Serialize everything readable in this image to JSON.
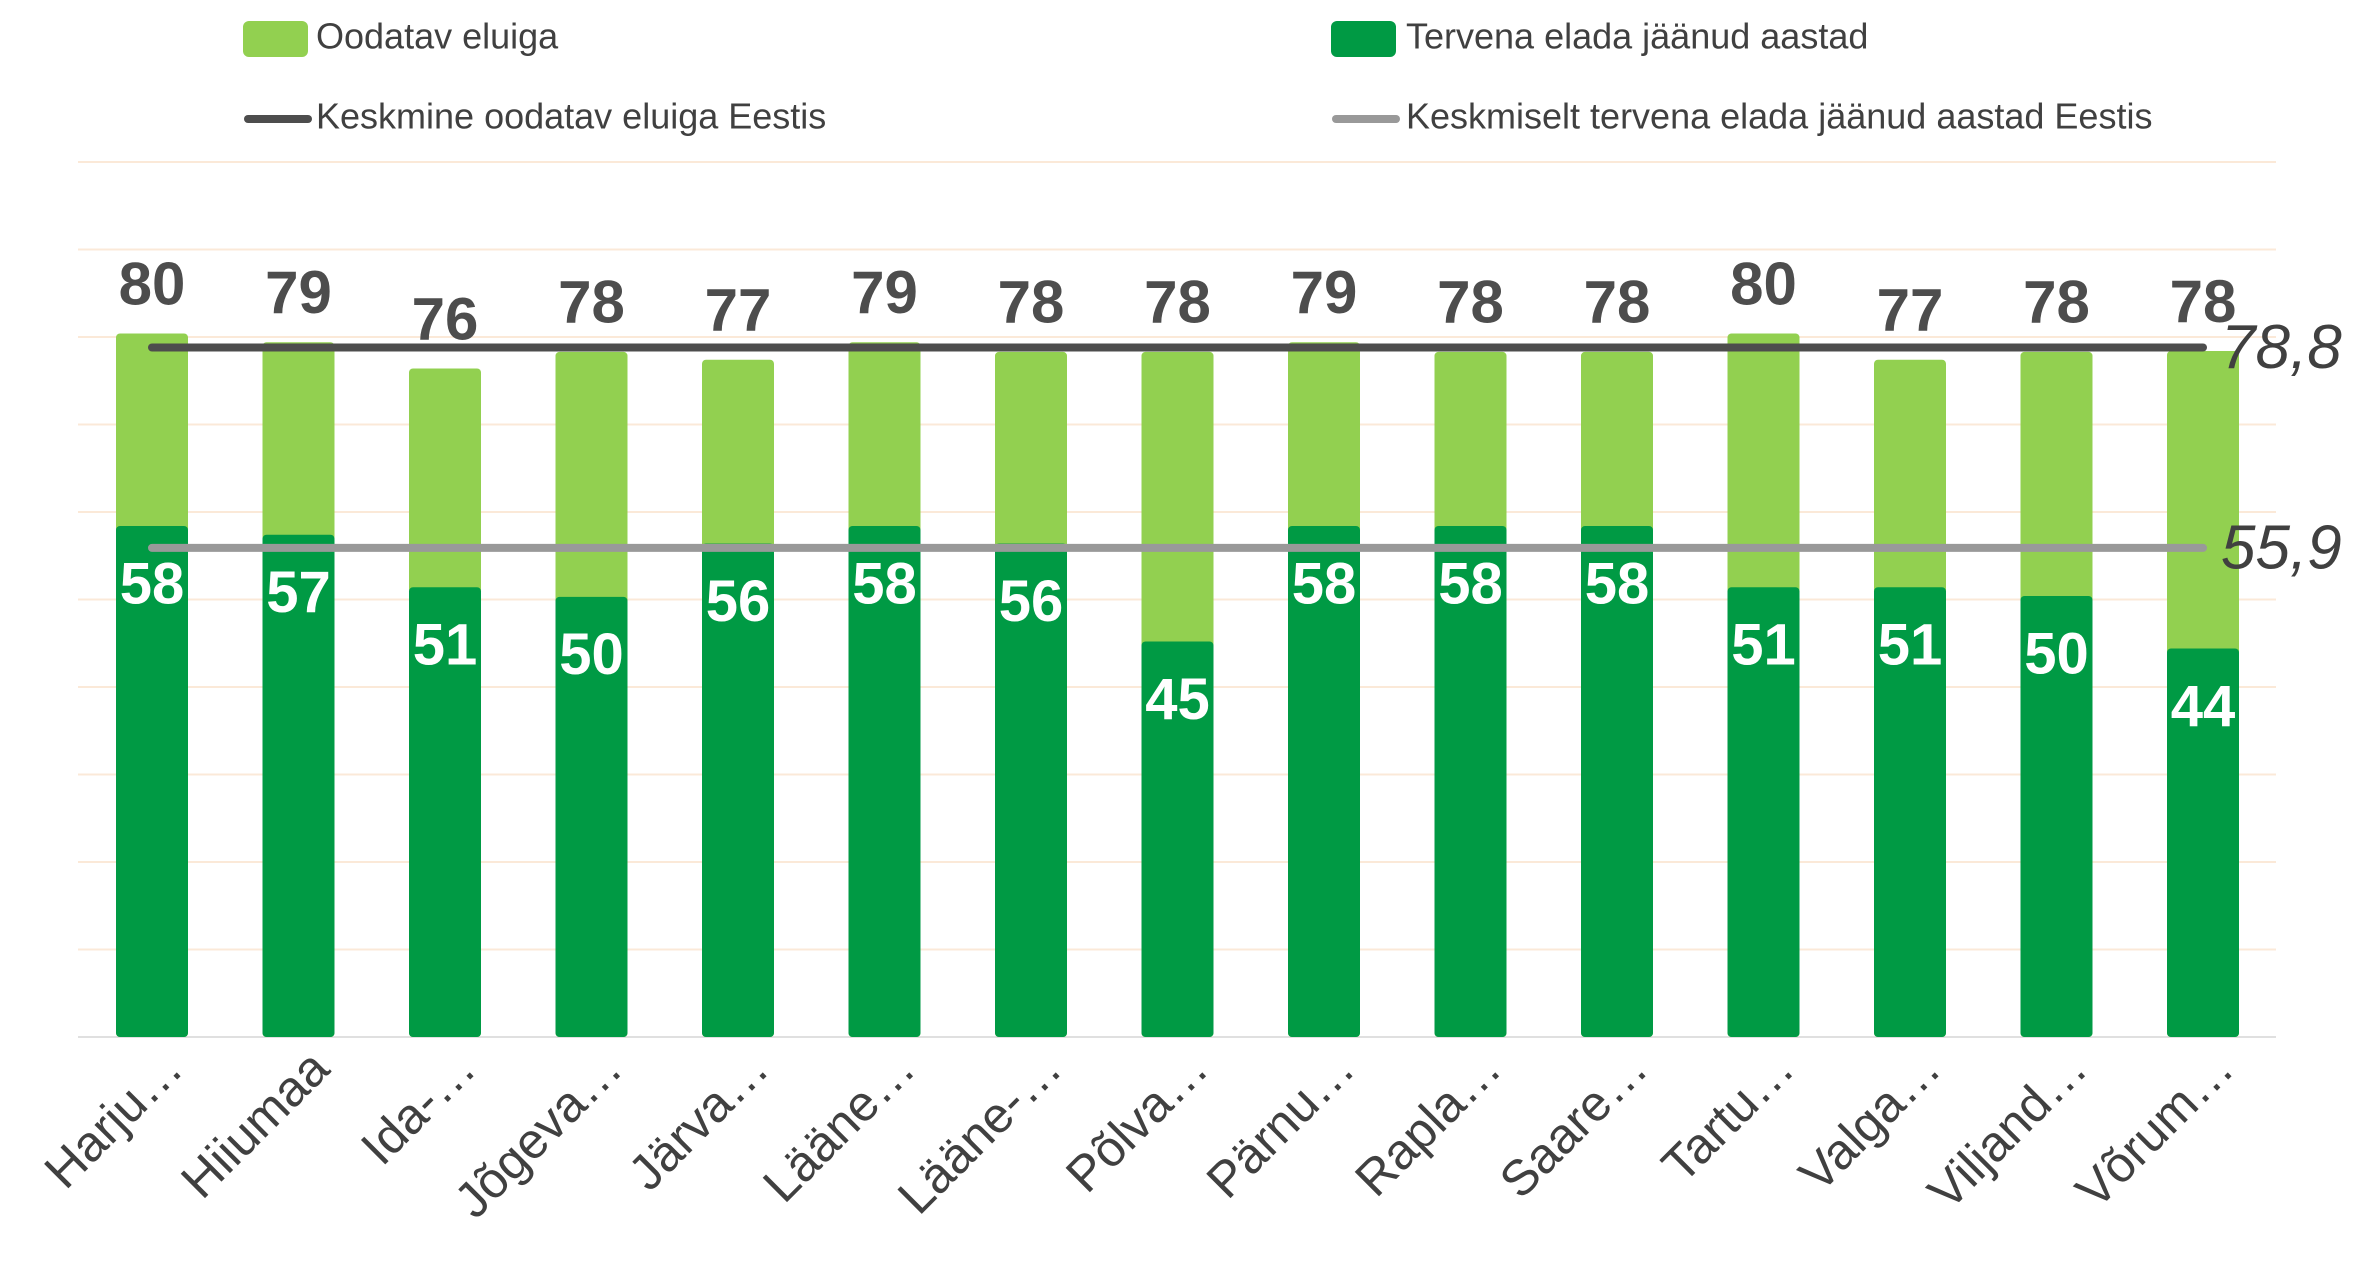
{
  "chart_data": {
    "type": "bar",
    "categories": [
      "Harju…",
      "Hiiumaa",
      "Ida-…",
      "Jõgeva…",
      "Järva…",
      "Lääne…",
      "Lääne-…",
      "Põlva…",
      "Pärnu…",
      "Rapla…",
      "Saare…",
      "Tartu…",
      "Valga…",
      "Viljand…",
      "Võrum…"
    ],
    "series": [
      {
        "name": "Oodatav eluiga",
        "color": "#92d050",
        "values": [
          80.4,
          79.4,
          76.4,
          78.3,
          77.4,
          79.4,
          78.3,
          78.3,
          79.4,
          78.3,
          78.3,
          80.4,
          77.4,
          78.3,
          78.4
        ],
        "value_labels": [
          "80",
          "79",
          "76",
          "78",
          "77",
          "79",
          "78",
          "78",
          "79",
          "78",
          "78",
          "80",
          "77",
          "78",
          "78"
        ]
      },
      {
        "name": "Tervena elada jäänud aastad",
        "color": "#009a44",
        "values": [
          58.4,
          57.4,
          51.4,
          50.3,
          56.4,
          58.4,
          56.4,
          45.2,
          58.4,
          58.4,
          58.4,
          51.4,
          51.4,
          50.4,
          44.4
        ],
        "value_labels": [
          "58",
          "57",
          "51",
          "50",
          "56",
          "58",
          "56",
          "45",
          "58",
          "58",
          "58",
          "51",
          "51",
          "50",
          "44"
        ]
      }
    ],
    "reference_lines": [
      {
        "name": "Keskmine oodatav eluiga Eestis",
        "color": "#4d4d4d",
        "value": 78.8,
        "value_label": "78,8"
      },
      {
        "name": "Keskmiselt tervena elada jäänud aastad Eestis",
        "color": "#999999",
        "value": 55.9,
        "value_label": "55,9"
      }
    ],
    "ylim": [
      0,
      100
    ],
    "yticks": [
      0,
      10,
      20,
      30,
      40,
      50,
      60,
      70,
      80,
      90,
      100
    ],
    "grid": true
  }
}
